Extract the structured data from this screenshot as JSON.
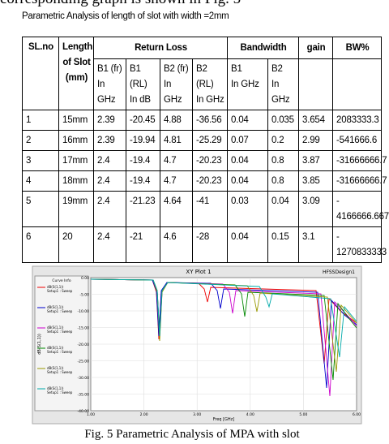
{
  "intro_text": "corresponding graph is shown in Fig. 5",
  "table_caption": "Parametric Analysis of length of slot with width =2mm",
  "table": {
    "header": {
      "sl_no": "SL.no",
      "length": "Length\nof Slot\n(mm)",
      "return_loss": "Return Loss",
      "bandwidth": "Bandwidth",
      "gain": "gain",
      "bw_pct": "BW%",
      "sub": [
        "B1 (fr)\nIn GHz",
        "B1\n(RL)\nIn dB",
        "B2 (fr)\nIn GHz",
        "B2\n(RL)\nIn GHz",
        "B1\nIn GHz",
        "B2\nIn GHz"
      ]
    },
    "rows": [
      [
        "1",
        "15mm",
        "2.39",
        "-20.45",
        "4.88",
        "-36.56",
        "0.04",
        "0.035",
        "3.654",
        "2083333.3"
      ],
      [
        "2",
        "16mm",
        "2.39",
        "-19.94",
        "4.81",
        "-25.29",
        "0.07",
        "0.2",
        "2.99",
        "-541666.6"
      ],
      [
        "3",
        "17mm",
        "2.4",
        "-19.4",
        "4.7",
        "-20.23",
        "0.04",
        "0.8",
        "3.87",
        "-31666666.7"
      ],
      [
        "4",
        "18mm",
        "2.4",
        "-19.4",
        "4.7",
        "-20.23",
        "0.04",
        "0.8",
        "3.85",
        "-31666666.7"
      ],
      [
        "5",
        "19mm",
        "2.4",
        "-21.23",
        "4.64",
        "-41",
        "0.03",
        "0.04",
        "3.09",
        "-\n4166666.667"
      ],
      [
        "6",
        "20",
        "2.4",
        "-21",
        "4.6",
        "-28",
        "0.04",
        "0.15",
        "3.1",
        "-\n1270833333"
      ]
    ]
  },
  "plot": {
    "title": "XY Plot 1",
    "design": "HFSSDesign1",
    "ylabel": "dB(S(1,1))",
    "xlabel": "Freq [GHz]",
    "legend_title": "Curve Info",
    "legend": [
      "dB(S(1,1))\nSetup1 : Sweep",
      "dB(S(1,1))\nSetup1 : Sweep",
      "dB(S(1,1))\nSetup1 : Sweep",
      "dB(S(1,1))\nSetup1 : Sweep",
      "dB(S(1,1))\nSetup1 : Sweep",
      "dB(S(1,1))\nSetup1 : Sweep"
    ],
    "yticks": [
      "0.00",
      "-5.00",
      "-10.00",
      "-15.00",
      "-20.00",
      "-25.00",
      "-30.00",
      "-35.00",
      "-40.00"
    ],
    "xticks": [
      "1.00",
      "2.00",
      "3.00",
      "4.00",
      "5.00",
      "6.00"
    ]
  },
  "figure_caption": "Fig. 5 Parametric Analysis of MPA with slot"
}
